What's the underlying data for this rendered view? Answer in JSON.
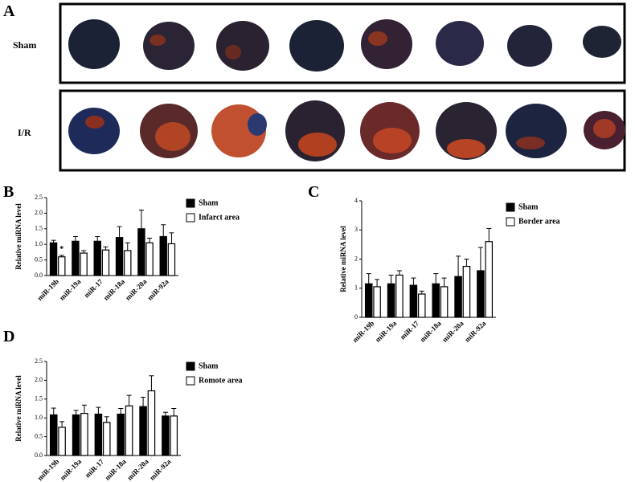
{
  "photos": {
    "label": "A",
    "rows": [
      "Sham",
      "I/R"
    ]
  },
  "chart_data": [
    {
      "type": "bar",
      "label": "B",
      "ylabel": "Relative miRNA level",
      "categories": [
        "miR-19b",
        "miR-19a",
        "miR-17",
        "miR-18a",
        "miR-20a",
        "miR-92a"
      ],
      "series": [
        {
          "name": "Sham",
          "color": "#000000",
          "values": [
            1.05,
            1.1,
            1.1,
            1.22,
            1.5,
            1.25
          ],
          "errors": [
            0.08,
            0.15,
            0.15,
            0.35,
            0.6,
            0.38
          ]
        },
        {
          "name": "Infarct area",
          "color": "#ffffff",
          "values": [
            0.6,
            0.72,
            0.82,
            0.8,
            1.05,
            1.02
          ],
          "errors": [
            0.05,
            0.08,
            0.1,
            0.25,
            0.15,
            0.35
          ]
        }
      ],
      "annotation": "*",
      "ylim": [
        0,
        2.5
      ],
      "yticks": [
        {
          "value": 0,
          "label": "0.0"
        },
        {
          "value": 0.5,
          "label": "0.5"
        },
        {
          "value": 1,
          "label": "1.0"
        },
        {
          "value": 1.5,
          "label": "1.5"
        },
        {
          "value": 2,
          "label": "2.0"
        },
        {
          "value": 2.5,
          "label": "2.5"
        }
      ]
    },
    {
      "type": "bar",
      "label": "C",
      "ylabel": "Relative miRNA level",
      "categories": [
        "miR-19b",
        "miR-19a",
        "miR-17",
        "miR-18a",
        "miR-20a",
        "miR-92a"
      ],
      "series": [
        {
          "name": "Sham",
          "color": "#000000",
          "values": [
            1.15,
            1.15,
            1.1,
            1.15,
            1.4,
            1.6
          ],
          "errors": [
            0.35,
            0.3,
            0.25,
            0.35,
            0.7,
            0.8
          ]
        },
        {
          "name": "Border area",
          "color": "#ffffff",
          "values": [
            1.05,
            1.45,
            0.8,
            1.05,
            1.75,
            2.6
          ],
          "errors": [
            0.25,
            0.15,
            0.1,
            0.3,
            0.25,
            0.45
          ]
        }
      ],
      "ylim": [
        0,
        4
      ],
      "yticks": [
        0,
        1,
        2,
        3,
        4
      ]
    },
    {
      "type": "bar",
      "label": "D",
      "ylabel": "Relative miRNA level",
      "categories": [
        "miR-19b",
        "miR-19a",
        "miR-17",
        "miR-18a",
        "miR-20a",
        "miR-92a"
      ],
      "series": [
        {
          "name": "Sham",
          "color": "#000000",
          "values": [
            1.08,
            1.08,
            1.1,
            1.1,
            1.3,
            1.05
          ],
          "errors": [
            0.18,
            0.12,
            0.18,
            0.15,
            0.25,
            0.1
          ]
        },
        {
          "name": "Romote area",
          "color": "#ffffff",
          "values": [
            0.75,
            1.12,
            0.88,
            1.32,
            1.72,
            1.05
          ],
          "errors": [
            0.15,
            0.22,
            0.15,
            0.28,
            0.4,
            0.2
          ]
        }
      ],
      "ylim": [
        0,
        2.5
      ],
      "yticks": [
        {
          "value": 0,
          "label": "0.0"
        },
        {
          "value": 0.5,
          "label": "0.5"
        },
        {
          "value": 1,
          "label": "1.0"
        },
        {
          "value": 1.5,
          "label": "1.5"
        },
        {
          "value": 2,
          "label": "2.0"
        },
        {
          "value": 2.5,
          "label": "2.5"
        }
      ]
    }
  ]
}
